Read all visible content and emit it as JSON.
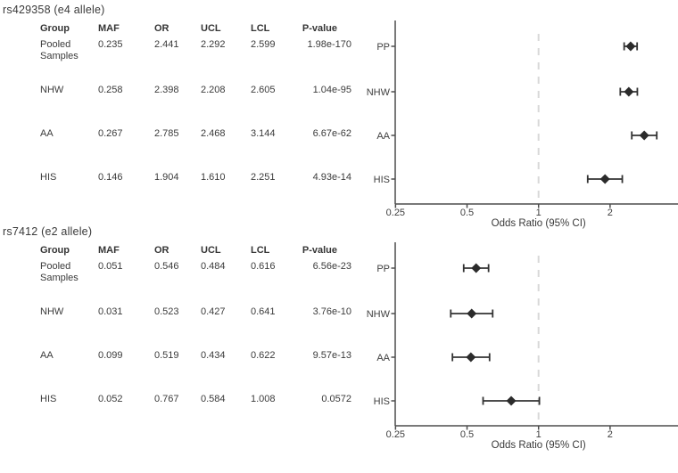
{
  "figure": {
    "colors": {
      "marker": "#2b2b2b",
      "error_bar": "#333333",
      "axis": "#4d4d4d",
      "reference_line": "#d8d8d8",
      "text": "#3b3b3b"
    }
  },
  "panels": [
    {
      "id": "rs429358",
      "title": "rs429358 (e4 allele)",
      "table": {
        "headers": [
          "Group",
          "MAF",
          "OR",
          "UCL",
          "LCL",
          "P-value"
        ],
        "rows": [
          [
            "Pooled\nSamples",
            "0.235",
            "2.441",
            "2.292",
            "2.599",
            "1.98e-170"
          ],
          [
            "NHW",
            "0.258",
            "2.398",
            "2.208",
            "2.605",
            "1.04e-95"
          ],
          [
            "AA",
            "0.267",
            "2.785",
            "2.468",
            "3.144",
            "6.67e-62"
          ],
          [
            "HIS",
            "0.146",
            "1.904",
            "1.610",
            "2.251",
            "4.93e-14"
          ]
        ]
      }
    },
    {
      "id": "rs7412",
      "title": "rs7412 (e2 allele)",
      "table": {
        "headers": [
          "Group",
          "MAF",
          "OR",
          "UCL",
          "LCL",
          "P-value"
        ],
        "rows": [
          [
            "Pooled\nSamples",
            "0.051",
            "0.546",
            "0.484",
            "0.616",
            "6.56e-23"
          ],
          [
            "NHW",
            "0.031",
            "0.523",
            "0.427",
            "0.641",
            "3.76e-10"
          ],
          [
            "AA",
            "0.099",
            "0.519",
            "0.434",
            "0.622",
            "9.57e-13"
          ],
          [
            "HIS",
            "0.052",
            "0.767",
            "0.584",
            "1.008",
            "0.0572"
          ]
        ]
      }
    }
  ],
  "chart_data": [
    {
      "type": "scatter",
      "variant": "forest-plot",
      "title": "rs429358 (e4 allele)",
      "xlabel": "Odds Ratio (95% CI)",
      "x_scale": "log2",
      "x_ticks": [
        "0.25",
        "0.5",
        "1",
        "2"
      ],
      "x_tick_values": [
        0.25,
        0.5,
        1,
        2
      ],
      "xlim": [
        0.25,
        3.9
      ],
      "reference_line_x": 1,
      "grid": false,
      "legend": false,
      "categories": [
        "PP",
        "NHW",
        "AA",
        "HIS"
      ],
      "series": [
        {
          "name": "OR",
          "values": [
            2.441,
            2.398,
            2.785,
            1.904
          ]
        },
        {
          "name": "CI_lower",
          "values": [
            2.292,
            2.208,
            2.468,
            1.61
          ]
        },
        {
          "name": "CI_upper",
          "values": [
            2.599,
            2.605,
            3.144,
            2.251
          ]
        }
      ]
    },
    {
      "type": "scatter",
      "variant": "forest-plot",
      "title": "rs7412 (e2 allele)",
      "xlabel": "Odds Ratio (95% CI)",
      "x_scale": "log2",
      "x_ticks": [
        "0.25",
        "0.5",
        "1",
        "2"
      ],
      "x_tick_values": [
        0.25,
        0.5,
        1,
        2
      ],
      "xlim": [
        0.25,
        3.9
      ],
      "reference_line_x": 1,
      "grid": false,
      "legend": false,
      "categories": [
        "PP",
        "NHW",
        "AA",
        "HIS"
      ],
      "series": [
        {
          "name": "OR",
          "values": [
            0.546,
            0.523,
            0.519,
            0.767
          ]
        },
        {
          "name": "CI_lower",
          "values": [
            0.484,
            0.427,
            0.434,
            0.584
          ]
        },
        {
          "name": "CI_upper",
          "values": [
            0.616,
            0.641,
            0.622,
            1.008
          ]
        }
      ]
    }
  ]
}
